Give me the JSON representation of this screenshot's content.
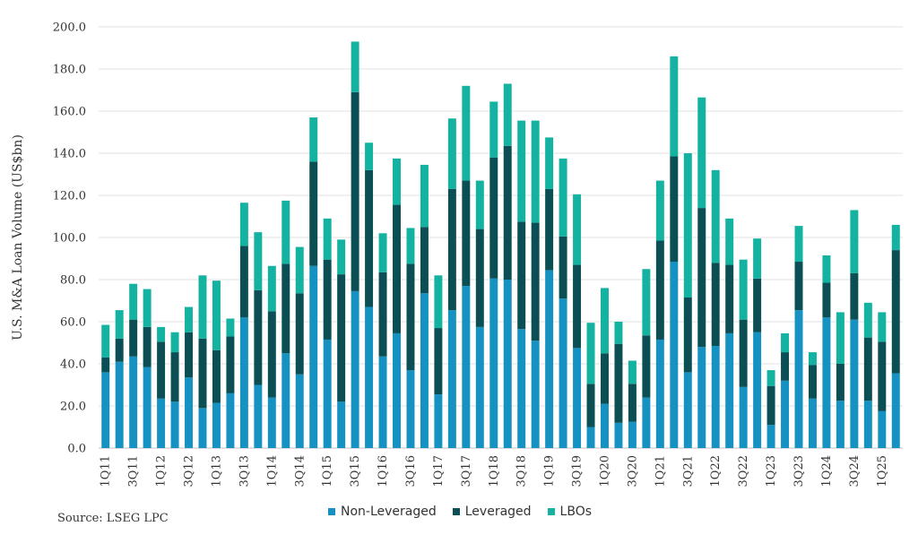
{
  "chart_data": {
    "type": "bar",
    "stacked": true,
    "ylabel": "U.S. M&A Loan Volume (US$bn)",
    "ylim": [
      0,
      200
    ],
    "yticks": [
      "0.0",
      "20.0",
      "40.0",
      "60.0",
      "80.0",
      "100.0",
      "120.0",
      "140.0",
      "160.0",
      "180.0",
      "200.0"
    ],
    "grid": true,
    "legend_position": "bottom",
    "categories": [
      "1Q11",
      "2Q11",
      "3Q11",
      "4Q11",
      "1Q12",
      "2Q12",
      "3Q12",
      "4Q12",
      "1Q13",
      "2Q13",
      "3Q13",
      "4Q13",
      "1Q14",
      "2Q14",
      "3Q14",
      "4Q14",
      "1Q15",
      "2Q15",
      "3Q15",
      "4Q15",
      "1Q16",
      "2Q16",
      "3Q16",
      "4Q16",
      "1Q17",
      "2Q17",
      "3Q17",
      "4Q17",
      "1Q18",
      "2Q18",
      "3Q18",
      "4Q18",
      "1Q19",
      "2Q19",
      "3Q19",
      "4Q19",
      "1Q20",
      "2Q20",
      "3Q20",
      "4Q20",
      "1Q21",
      "2Q21",
      "3Q21",
      "4Q21",
      "1Q22",
      "2Q22",
      "3Q22",
      "4Q22",
      "1Q23",
      "2Q23",
      "3Q23",
      "4Q23",
      "1Q24",
      "2Q24",
      "3Q24",
      "4Q24",
      "1Q25",
      "2Q25"
    ],
    "x_tick_labels": [
      "1Q11",
      "3Q11",
      "1Q12",
      "3Q12",
      "1Q13",
      "3Q13",
      "1Q14",
      "3Q14",
      "1Q15",
      "3Q15",
      "1Q16",
      "3Q16",
      "1Q17",
      "3Q17",
      "1Q18",
      "3Q18",
      "1Q19",
      "3Q19",
      "1Q20",
      "3Q20",
      "1Q21",
      "3Q21",
      "1Q22",
      "3Q22",
      "1Q23",
      "3Q23",
      "1Q24",
      "3Q24",
      "1Q25"
    ],
    "series": [
      {
        "name": "Non-Leveraged",
        "color": "#1592c2",
        "values": [
          36,
          41,
          43.5,
          38.5,
          23.5,
          22,
          33.5,
          19,
          21.5,
          26,
          62,
          30,
          24,
          45,
          35,
          86.5,
          51.5,
          22,
          74.5,
          67,
          43.5,
          54.5,
          37,
          73.5,
          25.5,
          65.5,
          77,
          57.5,
          80.5,
          80,
          56.5,
          51,
          84.5,
          71,
          47.5,
          10,
          21,
          12,
          12.5,
          24,
          51.5,
          88.5,
          36,
          48,
          48.5,
          54.5,
          29,
          55,
          11,
          32,
          65.5,
          23.5,
          62,
          22.5,
          61,
          22.5,
          17.5,
          35.5
        ]
      },
      {
        "name": "Leveraged",
        "color": "#0b4f55",
        "values": [
          7,
          11,
          17.5,
          19,
          27,
          23.5,
          21.5,
          33,
          25,
          27,
          34,
          45,
          41,
          42.5,
          38.5,
          49.5,
          38,
          60.5,
          94.5,
          65,
          40,
          61,
          50.5,
          31.5,
          31.5,
          57.5,
          50,
          46.5,
          57.5,
          63.5,
          51,
          56,
          38.5,
          29.5,
          39.5,
          20.5,
          24,
          37.5,
          18,
          29.5,
          47,
          50,
          35.5,
          66,
          39.5,
          32.5,
          32,
          25.5,
          18.5,
          13.5,
          23,
          16,
          16.5,
          17.5,
          22,
          30,
          33,
          58.5
        ]
      },
      {
        "name": "LBOs",
        "color": "#14b2a1",
        "values": [
          15.5,
          13.5,
          17,
          18,
          7,
          9.5,
          12,
          30,
          33,
          8.5,
          20.5,
          27.5,
          21.5,
          30,
          22,
          21,
          19.5,
          16.5,
          24,
          13,
          18.5,
          22,
          17,
          29.5,
          25,
          33.5,
          45,
          23,
          26.5,
          29.5,
          48,
          48.5,
          24.5,
          37,
          33.5,
          29,
          31,
          10.5,
          11,
          31.5,
          28.5,
          47.5,
          68.5,
          52.5,
          44,
          22,
          28.5,
          19,
          7.5,
          9,
          17,
          6,
          13,
          24.5,
          30,
          16.5,
          14,
          12
        ]
      }
    ]
  },
  "source_text": "Source:  LSEG LPC"
}
